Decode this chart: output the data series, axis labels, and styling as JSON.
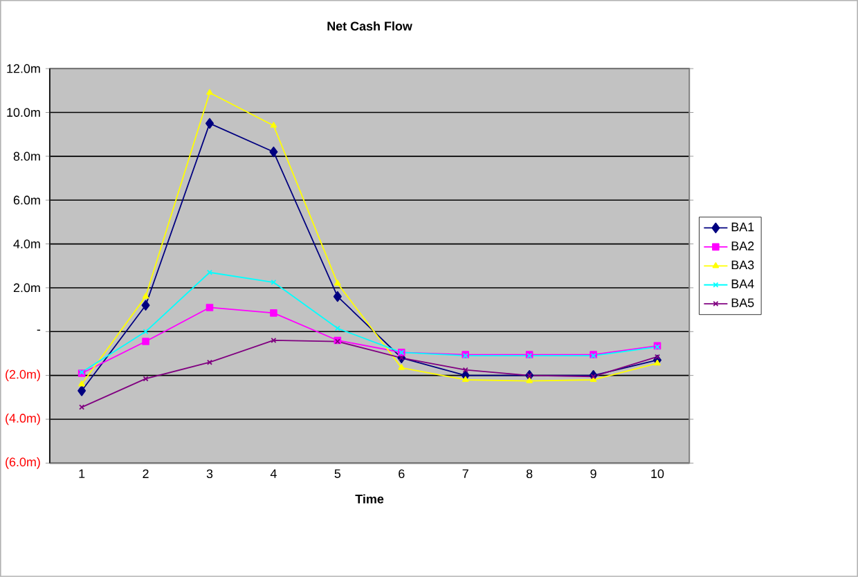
{
  "chart_data": {
    "type": "line",
    "title": "Net Cash Flow",
    "xlabel": "Time",
    "categories": [
      "1",
      "2",
      "3",
      "4",
      "5",
      "6",
      "7",
      "8",
      "9",
      "10"
    ],
    "series": [
      {
        "name": "BA1",
        "color": "#000080",
        "marker": "diamond",
        "values": [
          -2.7,
          1.2,
          9.5,
          8.2,
          1.6,
          -1.2,
          -2.0,
          -2.0,
          -2.0,
          -1.3
        ]
      },
      {
        "name": "BA2",
        "color": "#ff00ff",
        "marker": "square",
        "values": [
          -1.9,
          -0.45,
          1.1,
          0.85,
          -0.4,
          -0.95,
          -1.05,
          -1.05,
          -1.05,
          -0.65
        ]
      },
      {
        "name": "BA3",
        "color": "#ffff00",
        "marker": "triangle",
        "values": [
          -2.4,
          1.6,
          10.9,
          9.4,
          2.2,
          -1.65,
          -2.2,
          -2.25,
          -2.2,
          -1.45
        ]
      },
      {
        "name": "BA4",
        "color": "#00ffff",
        "marker": "cross",
        "values": [
          -1.85,
          0.0,
          2.7,
          2.25,
          0.15,
          -0.95,
          -1.1,
          -1.1,
          -1.1,
          -0.7
        ]
      },
      {
        "name": "BA5",
        "color": "#800080",
        "marker": "cross",
        "values": [
          -3.45,
          -2.15,
          -1.4,
          -0.4,
          -0.45,
          -1.2,
          -1.75,
          -2.0,
          -2.05,
          -1.15
        ]
      }
    ],
    "ylim": [
      -6,
      12
    ],
    "yticks": [
      {
        "value": -6,
        "label": "(6.0m)"
      },
      {
        "value": -4,
        "label": "(4.0m)"
      },
      {
        "value": -2,
        "label": "(2.0m)"
      },
      {
        "value": 0,
        "label": "-"
      },
      {
        "value": 2,
        "label": "2.0m"
      },
      {
        "value": 4,
        "label": "4.0m"
      },
      {
        "value": 6,
        "label": "6.0m"
      },
      {
        "value": 8,
        "label": "8.0m"
      },
      {
        "value": 10,
        "label": "10.0m"
      },
      {
        "value": 12,
        "label": "12.0m"
      }
    ],
    "grid": "y",
    "legend": "right",
    "line_style": "solid"
  }
}
